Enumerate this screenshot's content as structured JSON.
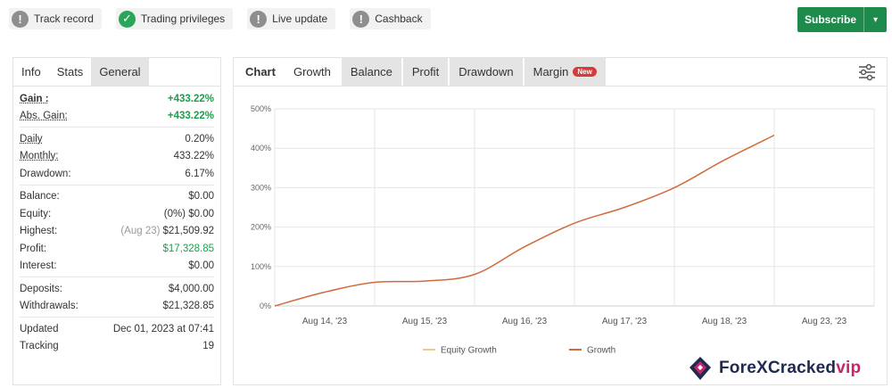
{
  "badges": [
    {
      "label": "Track record",
      "state": "grey",
      "icon": "!"
    },
    {
      "label": "Trading privileges",
      "state": "green",
      "icon": "✓"
    },
    {
      "label": "Live update",
      "state": "grey",
      "icon": "!"
    },
    {
      "label": "Cashback",
      "state": "grey",
      "icon": "!"
    }
  ],
  "subscribe": {
    "label": "Subscribe",
    "caret": "▾"
  },
  "left_tabs": [
    "Info",
    "Stats",
    "General"
  ],
  "stats": {
    "gain": {
      "label": "Gain :",
      "value": "+433.22%"
    },
    "abs_gain": {
      "label": "Abs. Gain:",
      "value": "+433.22%"
    },
    "daily": {
      "label": "Daily",
      "value": "0.20%"
    },
    "monthly": {
      "label": "Monthly:",
      "value": "433.22%"
    },
    "drawdown": {
      "label": "Drawdown:",
      "value": "6.17%"
    },
    "balance": {
      "label": "Balance:",
      "value": "$0.00"
    },
    "equity": {
      "label": "Equity:",
      "value": "(0%) $0.00"
    },
    "highest": {
      "label": "Highest:",
      "note": "(Aug 23)",
      "value": "$21,509.92"
    },
    "profit": {
      "label": "Profit:",
      "value": "$17,328.85"
    },
    "interest": {
      "label": "Interest:",
      "value": "$0.00"
    },
    "deposits": {
      "label": "Deposits:",
      "value": "$4,000.00"
    },
    "withdrawals": {
      "label": "Withdrawals:",
      "value": "$21,328.85"
    },
    "updated": {
      "label": "Updated",
      "value": "Dec 01, 2023 at 07:41"
    },
    "tracking": {
      "label": "Tracking",
      "value": "19"
    }
  },
  "chart_tabs": {
    "chart": "Chart",
    "growth": "Growth",
    "balance": "Balance",
    "profit": "Profit",
    "drawdown": "Drawdown",
    "margin": "Margin",
    "new_badge": "New"
  },
  "chart_data": {
    "type": "line",
    "title": "",
    "xlabel": "",
    "ylabel": "",
    "categories": [
      "Aug 14, '23",
      "Aug 15, '23",
      "Aug 16, '23",
      "Aug 17, '23",
      "Aug 18, '23",
      "Aug 23, '23"
    ],
    "yticks": [
      "0%",
      "100%",
      "200%",
      "300%",
      "400%",
      "500%"
    ],
    "ylim": [
      0,
      500
    ],
    "grid": true,
    "legend_position": "bottom",
    "series": [
      {
        "name": "Equity Growth",
        "color": "#e8cf8a",
        "x": [],
        "values": []
      },
      {
        "name": "Growth",
        "color": "#d36a3b",
        "x": [
          0.0,
          0.5,
          1.0,
          1.5,
          2.0,
          2.5,
          3.0,
          3.5,
          4.0,
          4.5,
          5.0
        ],
        "values": [
          0,
          35,
          60,
          63,
          80,
          150,
          210,
          250,
          300,
          370,
          433
        ]
      }
    ]
  },
  "watermark": {
    "brand": "ForeXCracked",
    "suffix": "vip"
  },
  "colors": {
    "accent_green": "#1e8a4c",
    "growth_line": "#d36a3b",
    "equity_line": "#e8cf8a"
  }
}
